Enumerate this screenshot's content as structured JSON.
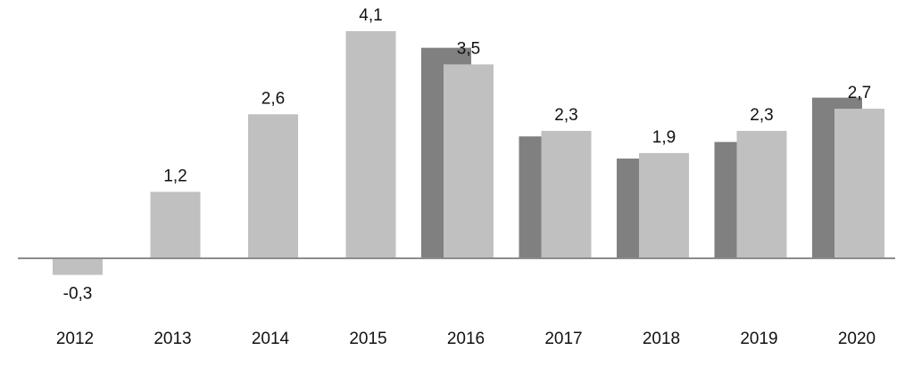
{
  "chart_data": {
    "type": "bar",
    "categories": [
      "2012",
      "2013",
      "2014",
      "2015",
      "2016",
      "2017",
      "2018",
      "2019",
      "2020"
    ],
    "series": [
      {
        "values": [
          null,
          null,
          null,
          null,
          3.8,
          2.2,
          1.8,
          2.1,
          2.9
        ]
      },
      {
        "values": [
          -0.3,
          1.2,
          2.6,
          4.1,
          3.5,
          2.3,
          1.9,
          2.3,
          2.7
        ]
      }
    ],
    "data_labels": [
      "-0,3",
      "1,2",
      "2,6",
      "4,1",
      "3,5",
      "2,3",
      "1,9",
      "2,3",
      "2,7"
    ],
    "colors": {
      "dark": "#808080",
      "light": "#c0c0c0",
      "axis": "#8c8c8c"
    },
    "title": "",
    "xlabel": "",
    "ylabel": "",
    "ylim": [
      -0.5,
      4.5
    ],
    "grid": false
  }
}
